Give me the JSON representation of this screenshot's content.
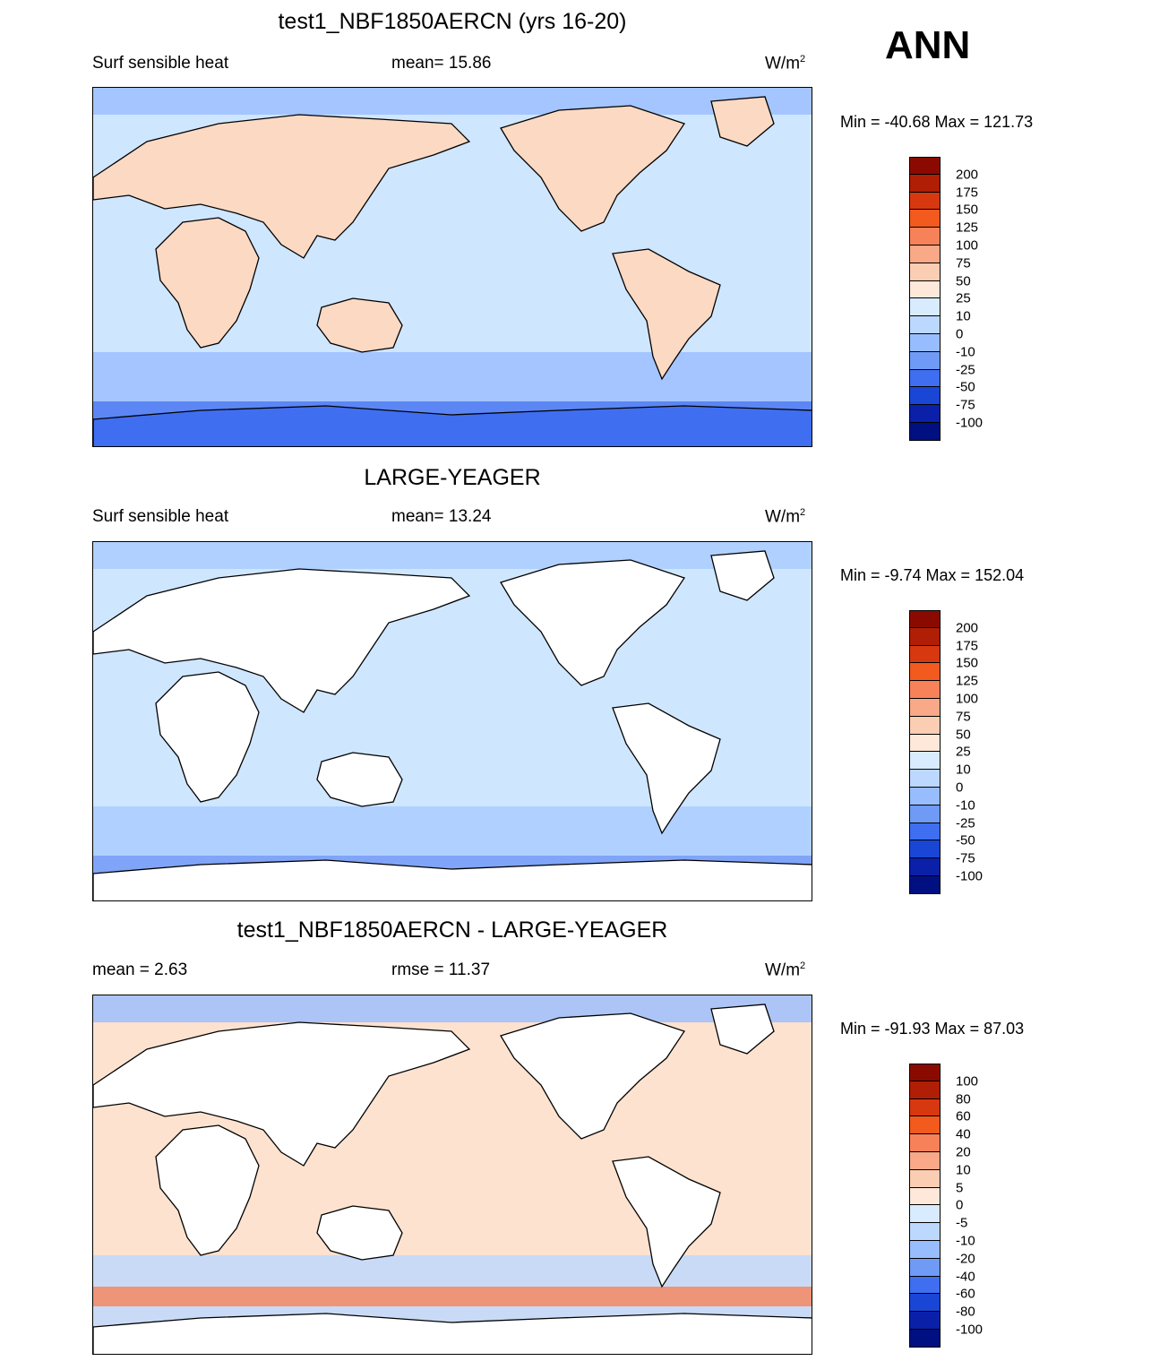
{
  "season": "ANN",
  "units_base": "W/m",
  "units_exp": "2",
  "panels": [
    {
      "title": "test1_NBF1850AERCN (yrs 16-20)",
      "left_label": "Surf sensible heat",
      "center_label": "mean=  15.86",
      "minmax": "Min = -40.68 Max = 121.73",
      "levels": [
        "200",
        "175",
        "150",
        "125",
        "100",
        "75",
        "50",
        "25",
        "10",
        "0",
        "-10",
        "-25",
        "-50",
        "-75",
        "-100"
      ],
      "ocean_color": "#cfe6ff",
      "land_color": "#fbd9c3"
    },
    {
      "title": "LARGE-YEAGER",
      "left_label": "Surf sensible heat",
      "center_label": "mean=  13.24",
      "minmax": "Min =  -9.74 Max = 152.04",
      "levels": [
        "200",
        "175",
        "150",
        "125",
        "100",
        "75",
        "50",
        "25",
        "10",
        "0",
        "-10",
        "-25",
        "-50",
        "-75",
        "-100"
      ],
      "ocean_color": "#cfe6ff",
      "land_color": "#ffffff"
    },
    {
      "title": "test1_NBF1850AERCN - LARGE-YEAGER",
      "left_label": "mean =   2.63",
      "center_label": "rmse =  11.37",
      "minmax": "Min = -91.93 Max =  87.03",
      "levels": [
        "100",
        "80",
        "60",
        "40",
        "20",
        "10",
        "5",
        "0",
        "-5",
        "-10",
        "-20",
        "-40",
        "-60",
        "-80",
        "-100"
      ],
      "ocean_color": "#fde2d0",
      "land_color": "#ffffff"
    }
  ],
  "colorbar_colors": [
    "#8b0a00",
    "#b01e05",
    "#d8380f",
    "#f25a1e",
    "#f7825a",
    "#f9a888",
    "#fbcdb3",
    "#fde8da",
    "#d9ebff",
    "#bcd8ff",
    "#98bdff",
    "#6f9bf7",
    "#3f6ef0",
    "#1a46d6",
    "#0a20a8",
    "#001080"
  ],
  "chart_data": [
    {
      "type": "heatmap",
      "title": "test1_NBF1850AERCN (yrs 16-20)",
      "variable": "Surf sensible heat",
      "units": "W/m2",
      "mean": 15.86,
      "min": -40.68,
      "max": 121.73,
      "contour_levels": [
        -100,
        -75,
        -50,
        -25,
        -10,
        0,
        10,
        25,
        50,
        75,
        100,
        125,
        150,
        175,
        200
      ]
    },
    {
      "type": "heatmap",
      "title": "LARGE-YEAGER",
      "variable": "Surf sensible heat",
      "units": "W/m2",
      "mean": 13.24,
      "min": -9.74,
      "max": 152.04,
      "contour_levels": [
        -100,
        -75,
        -50,
        -25,
        -10,
        0,
        10,
        25,
        50,
        75,
        100,
        125,
        150,
        175,
        200
      ]
    },
    {
      "type": "heatmap",
      "title": "test1_NBF1850AERCN - LARGE-YEAGER",
      "units": "W/m2",
      "mean": 2.63,
      "rmse": 11.37,
      "min": -91.93,
      "max": 87.03,
      "contour_levels": [
        -100,
        -80,
        -60,
        -40,
        -20,
        -10,
        -5,
        0,
        5,
        10,
        20,
        40,
        60,
        80,
        100
      ]
    }
  ]
}
